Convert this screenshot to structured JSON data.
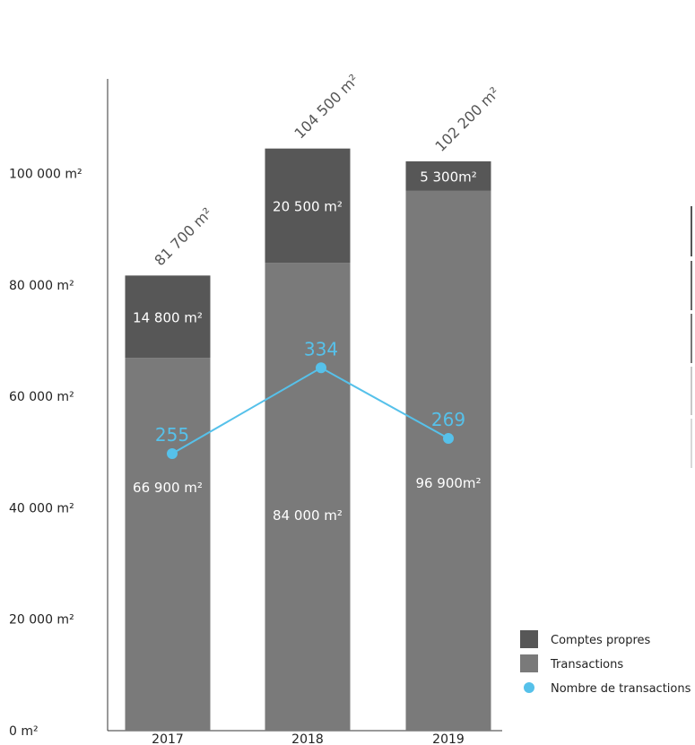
{
  "chart_data": {
    "type": "bar",
    "stacked": true,
    "categories": [
      "2017",
      "2018",
      "2019"
    ],
    "series": [
      {
        "name": "Transactions",
        "values": [
          66900,
          84000,
          96900
        ],
        "color": "#7a7a7a",
        "labels": [
          "66 900 m²",
          "84 000 m²",
          "96 900m²"
        ]
      },
      {
        "name": "Comptes propres",
        "values": [
          14800,
          20500,
          5300
        ],
        "color": "#575757",
        "labels": [
          "14 800 m²",
          "20 500 m²",
          "5 300m²"
        ]
      }
    ],
    "totals": [
      81700,
      104500,
      102200
    ],
    "total_labels": [
      "81 700 m²",
      "104 500 m²",
      "102 200 m²"
    ],
    "line_series": {
      "name": "Nombre de transactions",
      "values": [
        255,
        334,
        269
      ],
      "labels": [
        "255",
        "334",
        "269"
      ],
      "color": "#56c1ea"
    },
    "y_ticks": [
      {
        "value": 0,
        "label": "0 m²"
      },
      {
        "value": 20000,
        "label": "20 000 m²"
      },
      {
        "value": 40000,
        "label": "40 000 m²"
      },
      {
        "value": 60000,
        "label": "60 000 m²"
      },
      {
        "value": 80000,
        "label": "80 000 m²"
      },
      {
        "value": 100000,
        "label": "100 000 m²"
      }
    ],
    "ylim": [
      0,
      117000
    ],
    "line_ylim": [
      0,
      600
    ],
    "legend": {
      "placement": "bottom-right",
      "entries": [
        {
          "label": "Comptes propres",
          "color": "#575757",
          "shape": "square"
        },
        {
          "label": "Transactions",
          "color": "#7a7a7a",
          "shape": "square"
        },
        {
          "label": "Nombre de transactions",
          "color": "#56c1ea",
          "shape": "circle"
        }
      ]
    },
    "grid": false
  }
}
